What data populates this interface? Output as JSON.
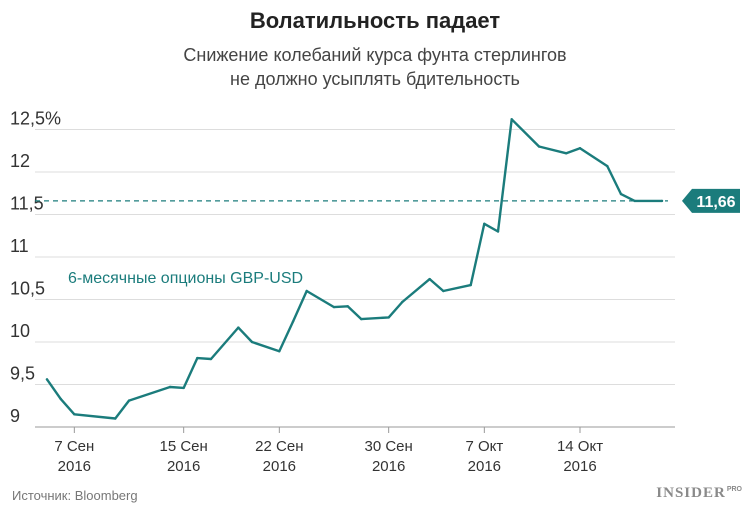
{
  "chart_data": {
    "type": "line",
    "title": "Волатильность падает",
    "subtitle_lines": [
      "Снижение колебаний курса фунта стерлингов",
      "не должно усыплять бдительность"
    ],
    "ylim": [
      9,
      12.8
    ],
    "y_ticks": [
      {
        "value": 9,
        "label": "9"
      },
      {
        "value": 9.5,
        "label": "9,5"
      },
      {
        "value": 10,
        "label": "10"
      },
      {
        "value": 10.5,
        "label": "10,5"
      },
      {
        "value": 11,
        "label": "11"
      },
      {
        "value": 11.5,
        "label": "11,5"
      },
      {
        "value": 12,
        "label": "12"
      },
      {
        "value": 12.5,
        "label": "12,5%"
      }
    ],
    "x_ticks": [
      {
        "date": "2016-09-07",
        "line1": "7 Сен",
        "line2": "2016"
      },
      {
        "date": "2016-09-15",
        "line1": "15 Сен",
        "line2": "2016"
      },
      {
        "date": "2016-09-22",
        "line1": "22 Сен",
        "line2": "2016"
      },
      {
        "date": "2016-09-30",
        "line1": "30 Сен",
        "line2": "2016"
      },
      {
        "date": "2016-10-07",
        "line1": "7 Окт",
        "line2": "2016"
      },
      {
        "date": "2016-10-14",
        "line1": "14 Окт",
        "line2": "2016"
      }
    ],
    "grid": "horizontal",
    "series": [
      {
        "name": "6-месячные опционы GBP-USD",
        "color": "#1b7c7c",
        "points": [
          {
            "x": "2016-09-05",
            "y": 9.56
          },
          {
            "x": "2016-09-06",
            "y": 9.33
          },
          {
            "x": "2016-09-07",
            "y": 9.15
          },
          {
            "x": "2016-09-10",
            "y": 9.1
          },
          {
            "x": "2016-09-11",
            "y": 9.31
          },
          {
            "x": "2016-09-14",
            "y": 9.47
          },
          {
            "x": "2016-09-15",
            "y": 9.46
          },
          {
            "x": "2016-09-16",
            "y": 9.81
          },
          {
            "x": "2016-09-17",
            "y": 9.8
          },
          {
            "x": "2016-09-19",
            "y": 10.17
          },
          {
            "x": "2016-09-20",
            "y": 10.0
          },
          {
            "x": "2016-09-22",
            "y": 9.89
          },
          {
            "x": "2016-09-23",
            "y": 10.24
          },
          {
            "x": "2016-09-24",
            "y": 10.6
          },
          {
            "x": "2016-09-26",
            "y": 10.41
          },
          {
            "x": "2016-09-27",
            "y": 10.42
          },
          {
            "x": "2016-09-28",
            "y": 10.27
          },
          {
            "x": "2016-09-30",
            "y": 10.29
          },
          {
            "x": "2016-10-01",
            "y": 10.47
          },
          {
            "x": "2016-10-03",
            "y": 10.74
          },
          {
            "x": "2016-10-04",
            "y": 10.6
          },
          {
            "x": "2016-10-06",
            "y": 10.67
          },
          {
            "x": "2016-10-07",
            "y": 11.39
          },
          {
            "x": "2016-10-08",
            "y": 11.3
          },
          {
            "x": "2016-10-09",
            "y": 12.62
          },
          {
            "x": "2016-10-11",
            "y": 12.3
          },
          {
            "x": "2016-10-13",
            "y": 12.22
          },
          {
            "x": "2016-10-14",
            "y": 12.28
          },
          {
            "x": "2016-10-16",
            "y": 12.07
          },
          {
            "x": "2016-10-17",
            "y": 11.74
          },
          {
            "x": "2016-10-18",
            "y": 11.66
          },
          {
            "x": "2016-10-20",
            "y": 11.66
          }
        ]
      }
    ],
    "reference_line": {
      "value": 11.66,
      "label": "11,66",
      "style": "dashed"
    },
    "series_label": "6-месячные опционы GBP-USD"
  },
  "footer": {
    "source": "Источник: Bloomberg",
    "logo_main": "INSIDER",
    "logo_sup": "PRO"
  },
  "colors": {
    "line": "#1b7c7c",
    "badge": "#1b7c7c",
    "grid": "#dddddd"
  }
}
